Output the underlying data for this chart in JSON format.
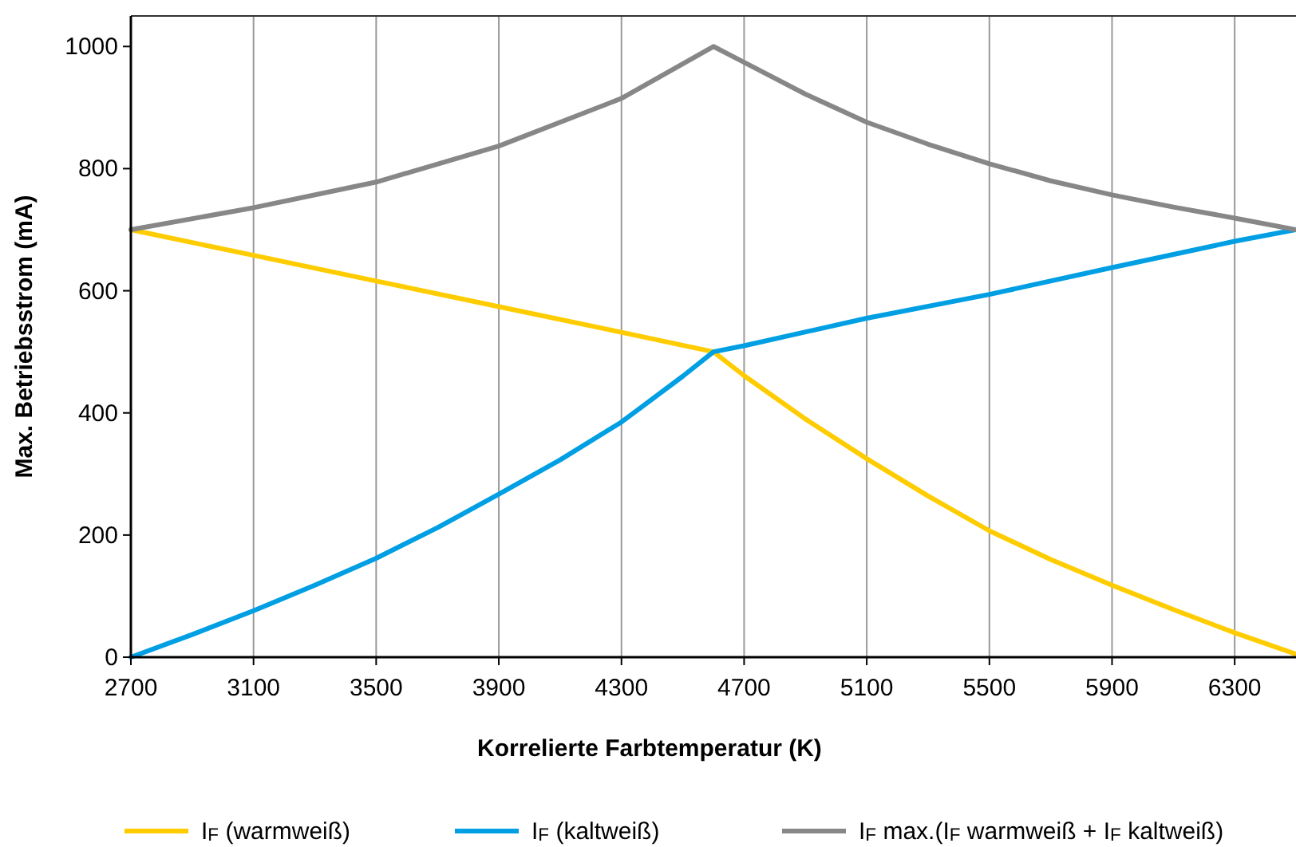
{
  "chart_data": {
    "type": "line",
    "xlabel": "Korrelierte Farbtemperatur (K)",
    "ylabel": "Max. Betriebsstrom (mA)",
    "xlim": [
      2700,
      6500
    ],
    "xticks": [
      2700,
      3100,
      3500,
      3900,
      4300,
      4700,
      5100,
      5500,
      5900,
      6300
    ],
    "ylim": [
      0,
      1050
    ],
    "yticks": [
      0,
      200,
      400,
      600,
      800,
      1000
    ],
    "grid": "x",
    "legend": "bottom",
    "marker": "none",
    "line_style": "solid",
    "series": [
      {
        "name": "I$_{F}$ (warmweiß)",
        "color": "#ffcc00",
        "x": [
          2700,
          3100,
          3500,
          3900,
          4300,
          4600,
          4700,
          4900,
          5100,
          5300,
          5500,
          5700,
          5900,
          6100,
          6300,
          6500
        ],
        "values": [
          700,
          658,
          616,
          574,
          532,
          500,
          461,
          390,
          325,
          264,
          207,
          160,
          118,
          78,
          40,
          5
        ]
      },
      {
        "name": "I$_{F}$ (kaltweiß)",
        "color": "#009fe3",
        "x": [
          2700,
          2900,
          3100,
          3300,
          3500,
          3700,
          3900,
          4100,
          4300,
          4500,
          4600,
          4700,
          5100,
          5500,
          5900,
          6300,
          6500
        ],
        "values": [
          0,
          37,
          76,
          118,
          162,
          212,
          267,
          323,
          385,
          460,
          500,
          510,
          555,
          594,
          638,
          681,
          700
        ]
      },
      {
        "name": "I$_{F}$ max.(I$_{F}$ warmweiß + I$_{F}$ kaltweiß)",
        "color": "#878787",
        "x": [
          2700,
          3100,
          3500,
          3900,
          4300,
          4600,
          4700,
          4900,
          5100,
          5300,
          5500,
          5700,
          5900,
          6100,
          6300,
          6500
        ],
        "values": [
          700,
          736,
          778,
          837,
          915,
          1000,
          974,
          922,
          876,
          840,
          808,
          780,
          757,
          737,
          719,
          700
        ]
      }
    ]
  }
}
